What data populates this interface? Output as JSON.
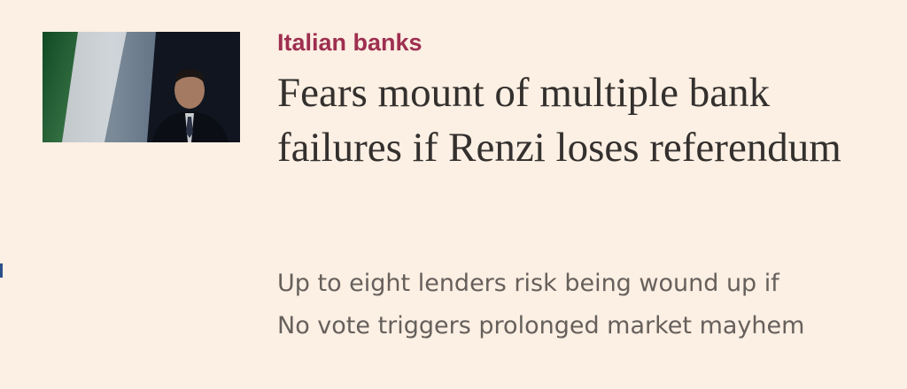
{
  "article": {
    "topic": "Italian banks",
    "headline": "Fears mount of multiple bank failures if Renzi loses referendum",
    "standfirst": "Up to eight lenders risk being wound up if No vote triggers prolonged market mayhem",
    "thumbnail_icon": "news-photo-icon"
  },
  "colors": {
    "background": "#fcefe3",
    "topic": "#9e2f50",
    "headline": "#33302e",
    "standfirst": "#66605c"
  }
}
